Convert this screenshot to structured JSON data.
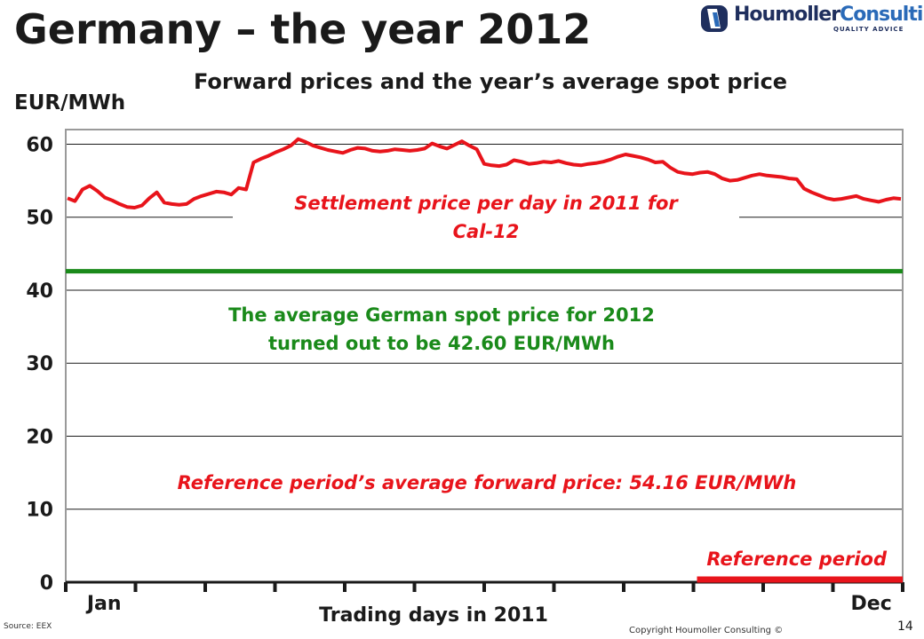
{
  "slide": {
    "title": "Germany – the year 2012",
    "subtitle": "Forward prices and the year’s average spot price",
    "source": "Source: EEX",
    "copyright": "Copyright Houmoller Consulting ©",
    "page_number": "14"
  },
  "logo": {
    "name_main": "Houmoller",
    "name_accent": "Consulting",
    "tagline": "QUALITY ADVICE"
  },
  "chart_data": {
    "type": "line",
    "ylabel": "EUR/MWh",
    "xlabel": "Trading days in 2011",
    "ylim": [
      0,
      62
    ],
    "yticks": [
      0,
      10,
      20,
      30,
      40,
      50,
      60
    ],
    "x_first_label": "Jan",
    "x_last_label": "Dec",
    "x_tick_count": 12,
    "grid": true,
    "series": [
      {
        "name": "",
        "color": "#e8141b",
        "values": [
          52.6,
          52.2,
          53.8,
          54.3,
          53.6,
          52.7,
          52.3,
          51.8,
          51.4,
          51.3,
          51.6,
          52.6,
          53.4,
          52.0,
          51.8,
          51.7,
          51.8,
          52.5,
          52.9,
          53.2,
          53.5,
          53.4,
          53.1,
          54.0,
          53.8,
          57.5,
          58.0,
          58.4,
          58.9,
          59.3,
          59.8,
          60.7,
          60.3,
          59.8,
          59.5,
          59.2,
          59.0,
          58.8,
          59.2,
          59.5,
          59.4,
          59.1,
          59.0,
          59.1,
          59.3,
          59.2,
          59.1,
          59.2,
          59.4,
          60.1,
          59.7,
          59.4,
          59.9,
          60.4,
          59.8,
          59.3,
          57.3,
          57.1,
          57.0,
          57.2,
          57.8,
          57.6,
          57.3,
          57.4,
          57.6,
          57.5,
          57.7,
          57.4,
          57.2,
          57.1,
          57.3,
          57.4,
          57.6,
          57.9,
          58.3,
          58.6,
          58.4,
          58.2,
          57.9,
          57.5,
          57.6,
          56.8,
          56.2,
          56.0,
          55.9,
          56.1,
          56.2,
          55.9,
          55.3,
          55.0,
          55.1,
          55.4,
          55.7,
          55.9,
          55.7,
          55.6,
          55.5,
          55.3,
          55.2,
          53.9,
          53.4,
          53.0,
          52.6,
          52.4,
          52.5,
          52.7,
          52.9,
          52.5,
          52.3,
          52.1,
          52.4,
          52.6,
          52.5
        ]
      }
    ],
    "spot_average": {
      "value": 42.6,
      "color": "#1a8a1a",
      "label_line1": "The average German spot price for 2012",
      "label_line2": "turned out to be 42.60 EUR/MWh"
    },
    "reference_period": {
      "start_month": 10,
      "end_month": 12,
      "color": "#e8141b",
      "label": "Reference period",
      "average_label": "Reference period’s average forward price:  54.16 EUR/MWh"
    },
    "settlement_label_line1": "Settlement price per day in 2011 for",
    "settlement_label_line2": "Cal-12"
  }
}
